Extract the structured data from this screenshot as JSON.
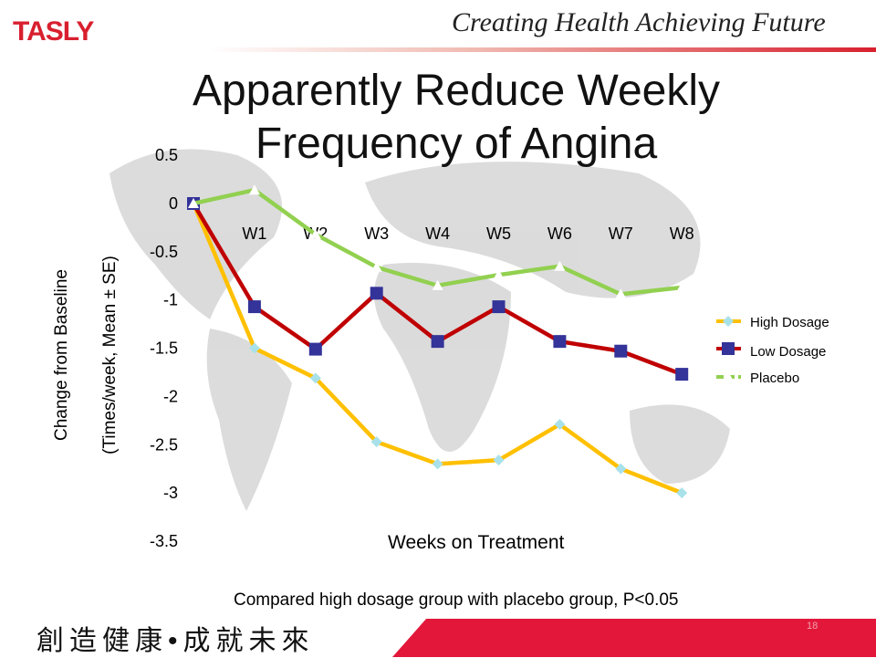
{
  "header": {
    "logo": "TASLY",
    "slogan": "Creating Health  Achieving Future"
  },
  "title_lines": [
    "Apparently Reduce Weekly",
    "Frequency of Angina"
  ],
  "footnote": "Compared high dosage group with placebo group, P<0.05",
  "footer": {
    "chinese_slogan": "創造健康•成就未來",
    "page_number": "18"
  },
  "chart_data": {
    "type": "line",
    "title": "Apparently Reduce Weekly Frequency of Angina",
    "xlabel": "Weeks  on  Treatment",
    "ylabel": [
      "Change  from  Baseline",
      "(Times/week, Mean ± SE)"
    ],
    "x": [
      "",
      "W1",
      "W2",
      "W3",
      "W4",
      "W5",
      "W6",
      "W7",
      "W8"
    ],
    "yticks": [
      "0.5",
      "0",
      "-0.5",
      "-1",
      "-1.5",
      "-2",
      "-2.5",
      "-3",
      "-3.5"
    ],
    "ylim": [
      -3.5,
      0.5
    ],
    "grid": false,
    "legend_position": "right",
    "series": [
      {
        "name": "High Dosage",
        "color": "#ffc000",
        "marker_color": "#a9e1ea",
        "marker": "diamond",
        "values": [
          0,
          -1.5,
          -1.81,
          -2.47,
          -2.7,
          -2.66,
          -2.29,
          -2.75,
          -3.0
        ]
      },
      {
        "name": "Low Dosage",
        "color": "#c00000",
        "marker_color": "#333399",
        "marker": "square",
        "values": [
          0,
          -1.07,
          -1.51,
          -0.93,
          -1.43,
          -1.07,
          -1.43,
          -1.53,
          -1.77
        ]
      },
      {
        "name": "Placebo",
        "color": "#92d050",
        "marker_color": "#ffffff",
        "marker": "triangle",
        "values": [
          0,
          0.14,
          -0.32,
          -0.66,
          -0.85,
          -0.74,
          -0.65,
          -0.94,
          -0.87
        ]
      }
    ]
  }
}
